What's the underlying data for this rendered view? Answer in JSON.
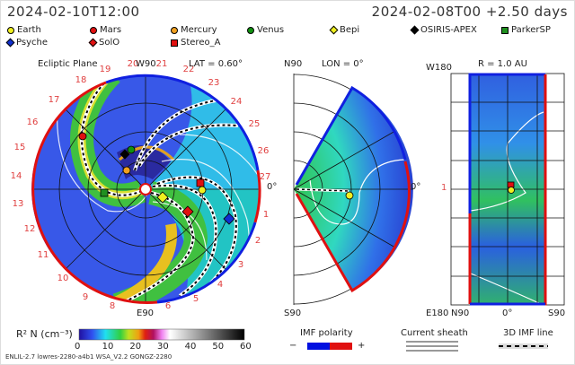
{
  "header": {
    "sim_time": "2024-02-10T12:00",
    "run_info": "2024-02-08T00 +2.50 days"
  },
  "legend": [
    {
      "name": "Earth",
      "shape": "circle",
      "color": "#f0f020"
    },
    {
      "name": "Mars",
      "shape": "circle",
      "color": "#e01010"
    },
    {
      "name": "Mercury",
      "shape": "circle",
      "color": "#f0a020"
    },
    {
      "name": "Venus",
      "shape": "circle",
      "color": "#109010"
    },
    {
      "name": "Bepi",
      "shape": "diamond",
      "color": "#f0f020"
    },
    {
      "name": "OSIRIS-APEX",
      "shape": "diamond",
      "color": "#000000"
    },
    {
      "name": "ParkerSP",
      "shape": "square",
      "color": "#209020"
    },
    {
      "name": "Psyche",
      "shape": "diamond",
      "color": "#1030d0"
    },
    {
      "name": "SolO",
      "shape": "diamond",
      "color": "#e01010"
    },
    {
      "name": "Stereo_A",
      "shape": "square",
      "color": "#e01010"
    }
  ],
  "ecliptic": {
    "title": "Ecliptic Plane",
    "lat": "LAT = 0.60°",
    "top_label": "W90",
    "bottom_label": "E90",
    "right_label": "0°",
    "carrington_labels": [
      "19",
      "20",
      "21",
      "22",
      "23",
      "24",
      "25",
      "26",
      "27",
      "1",
      "2",
      "3",
      "4",
      "5",
      "6",
      "8",
      "9",
      "10",
      "11",
      "12",
      "13",
      "14",
      "15",
      "16",
      "17",
      "18"
    ]
  },
  "meridional": {
    "lon": "LON = 0°",
    "top_label": "N90",
    "bottom_label": "S90",
    "right_label": "0°"
  },
  "sphere": {
    "title": "R = 1.0 AU",
    "top_label": "W180",
    "bottom_label": "E180",
    "left_mark": "1",
    "x_labels": [
      "N90",
      "0°",
      "S90"
    ]
  },
  "colorbar": {
    "label": "R² N (cm⁻³)",
    "ticks": [
      "0",
      "10",
      "20",
      "30",
      "40",
      "50",
      "60"
    ],
    "range": [
      0,
      60
    ]
  },
  "imf": {
    "label": "IMF polarity",
    "minus": "−",
    "plus": "+",
    "negative_color": "#0010e0",
    "positive_color": "#e01010"
  },
  "sheath": {
    "label": "Current sheath"
  },
  "imf_line": {
    "label": "3D IMF line"
  },
  "footer": {
    "model": "ENLIL-2.7 lowres-2280-a4b1 WSA_V2.2 GONGZ-2280"
  }
}
